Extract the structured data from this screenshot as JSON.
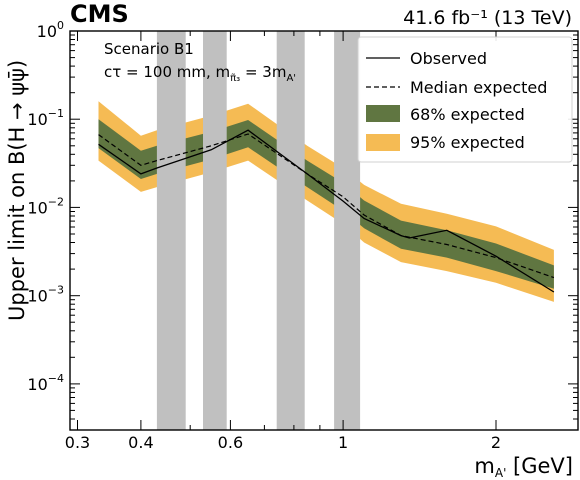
{
  "header": {
    "experiment": "CMS",
    "luminosity": "41.6 fb⁻¹ (13 TeV)"
  },
  "annotation": {
    "line1": "Scenario B1",
    "line2": "cτ = 100 mm, m",
    "line2_sub": "π̃₃",
    "line2_rest": " = 3m",
    "line2_sub2": "A'"
  },
  "legend": {
    "observed": "Observed",
    "median": "Median expected",
    "band68": "68% expected",
    "band95": "95% expected"
  },
  "colors": {
    "observed": "#000000",
    "median": "#000000",
    "band68": "#607641",
    "band95": "#F5BB54",
    "veto": "#C0C0C0"
  },
  "chart_data": {
    "type": "line",
    "xscale": "log",
    "yscale": "log",
    "xlabel": "m",
    "xlabel_sub": "A'",
    "xlabel_unit": " [GeV]",
    "ylabel": "Upper limit on B(H → ψψ̄)",
    "xlim": [
      0.29,
      2.9
    ],
    "ylim": [
      3e-05,
      1
    ],
    "x_ticks": [
      {
        "value": 0.3,
        "label": "0.3"
      },
      {
        "value": 0.4,
        "label": "0.4"
      },
      {
        "value": 0.6,
        "label": "0.6"
      },
      {
        "value": 1.0,
        "label": "1"
      },
      {
        "value": 2.0,
        "label": "2"
      }
    ],
    "y_ticks": [
      {
        "value": 1,
        "label": "1",
        "exp": "0"
      },
      {
        "value": 0.1,
        "label": "10",
        "exp": "−1"
      },
      {
        "value": 0.01,
        "label": "10",
        "exp": "−2"
      },
      {
        "value": 0.001,
        "label": "10",
        "exp": "−3"
      },
      {
        "value": 0.0001,
        "label": "10",
        "exp": "−4"
      }
    ],
    "excluded_mass_windows": [
      [
        0.43,
        0.49
      ],
      [
        0.53,
        0.59
      ],
      [
        0.74,
        0.84
      ],
      [
        0.96,
        1.08
      ]
    ],
    "series": [
      {
        "name": "Observed",
        "x": [
          0.33,
          0.4,
          0.43,
          0.55,
          0.65,
          0.85,
          1.0,
          1.1,
          1.3,
          1.35,
          1.6,
          2.0,
          2.6
        ],
        "y": [
          0.052,
          0.024,
          0.028,
          0.045,
          0.075,
          0.024,
          0.0118,
          0.0075,
          0.0048,
          0.0045,
          0.0055,
          0.0028,
          0.0011
        ]
      },
      {
        "name": "Median expected",
        "x": [
          0.33,
          0.4,
          0.43,
          0.55,
          0.65,
          0.85,
          1.0,
          1.1,
          1.3,
          1.6,
          2.0,
          2.6
        ],
        "y": [
          0.067,
          0.03,
          0.034,
          0.05,
          0.068,
          0.024,
          0.0132,
          0.0082,
          0.0048,
          0.0038,
          0.0027,
          0.0016
        ]
      }
    ],
    "bands": [
      {
        "name": "95% expected",
        "x": [
          0.33,
          0.4,
          0.43,
          0.55,
          0.65,
          0.85,
          1.0,
          1.1,
          1.3,
          1.6,
          2.0,
          2.6
        ],
        "low": [
          0.034,
          0.015,
          0.017,
          0.025,
          0.034,
          0.012,
          0.0065,
          0.004,
          0.0024,
          0.0019,
          0.0014,
          0.00085
        ],
        "high": [
          0.16,
          0.065,
          0.075,
          0.11,
          0.15,
          0.05,
          0.028,
          0.018,
          0.011,
          0.0085,
          0.0061,
          0.0033
        ]
      },
      {
        "name": "68% expected",
        "x": [
          0.33,
          0.4,
          0.43,
          0.55,
          0.65,
          0.85,
          1.0,
          1.1,
          1.3,
          1.6,
          2.0,
          2.6
        ],
        "low": [
          0.047,
          0.021,
          0.024,
          0.035,
          0.048,
          0.017,
          0.0092,
          0.0058,
          0.0034,
          0.0027,
          0.0019,
          0.0012
        ],
        "high": [
          0.1,
          0.044,
          0.05,
          0.072,
          0.098,
          0.034,
          0.019,
          0.012,
          0.0071,
          0.0055,
          0.0039,
          0.0022
        ]
      }
    ]
  }
}
